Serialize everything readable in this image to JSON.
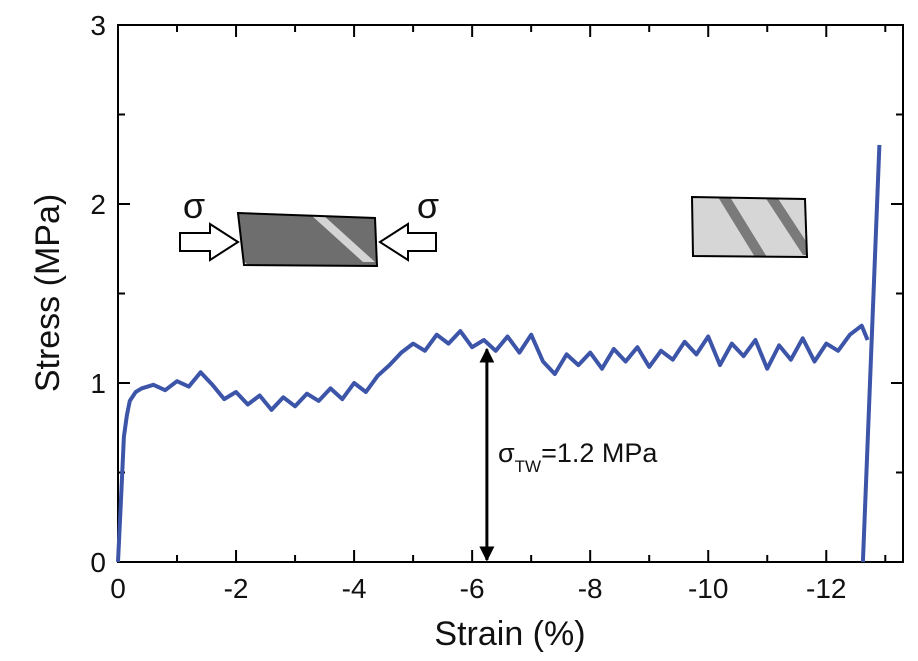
{
  "chart_data": {
    "type": "line",
    "xlabel": "Strain (%)",
    "ylabel": "Stress (MPa)",
    "x": [
      0,
      -0.05,
      -0.1,
      -0.15,
      -0.2,
      -0.3,
      -0.4,
      -0.6,
      -0.8,
      -1.0,
      -1.2,
      -1.4,
      -1.6,
      -1.8,
      -2.0,
      -2.2,
      -2.4,
      -2.6,
      -2.8,
      -3.0,
      -3.2,
      -3.4,
      -3.6,
      -3.8,
      -4.0,
      -4.2,
      -4.4,
      -4.6,
      -4.8,
      -5.0,
      -5.2,
      -5.4,
      -5.6,
      -5.8,
      -6.0,
      -6.2,
      -6.4,
      -6.6,
      -6.8,
      -7.0,
      -7.2,
      -7.4,
      -7.6,
      -7.8,
      -8.0,
      -8.2,
      -8.4,
      -8.6,
      -8.8,
      -9.0,
      -9.2,
      -9.4,
      -9.6,
      -9.8,
      -10.0,
      -10.2,
      -10.4,
      -10.6,
      -10.8,
      -11.0,
      -11.2,
      -11.4,
      -11.6,
      -11.8,
      -12.0,
      -12.2,
      -12.4,
      -12.6,
      -12.7,
      null,
      -12.62,
      -12.9
    ],
    "values": [
      0,
      0.35,
      0.7,
      0.82,
      0.9,
      0.95,
      0.97,
      0.99,
      0.96,
      1.01,
      0.98,
      1.06,
      0.99,
      0.91,
      0.95,
      0.88,
      0.93,
      0.85,
      0.92,
      0.87,
      0.94,
      0.9,
      0.97,
      0.91,
      1.0,
      0.95,
      1.04,
      1.1,
      1.17,
      1.22,
      1.18,
      1.27,
      1.22,
      1.29,
      1.2,
      1.24,
      1.18,
      1.26,
      1.17,
      1.27,
      1.12,
      1.05,
      1.16,
      1.1,
      1.17,
      1.08,
      1.19,
      1.12,
      1.2,
      1.09,
      1.18,
      1.13,
      1.23,
      1.16,
      1.26,
      1.1,
      1.22,
      1.15,
      1.24,
      1.08,
      1.21,
      1.13,
      1.25,
      1.12,
      1.22,
      1.18,
      1.27,
      1.32,
      1.24,
      null,
      0,
      2.33
    ],
    "color": "#3d55a8",
    "xlim": [
      0,
      -13.3
    ],
    "ylim": [
      0,
      3
    ],
    "xticks": [
      0,
      -2,
      -4,
      -6,
      -8,
      -10,
      -12
    ],
    "yticks": [
      0,
      1,
      2,
      3
    ],
    "xticks_minor": [
      -1,
      -3,
      -5,
      -7,
      -9,
      -11,
      -13
    ],
    "yticks_minor": [
      0.5,
      1.5,
      2.5
    ],
    "arrow": {
      "x": -6.25,
      "y_from": 0,
      "y_to": 1.2
    },
    "annotation": {
      "symbol": "σ",
      "subscript": "TW",
      "text": "=1.2 MPa"
    },
    "schematic_labels": [
      "σ",
      "σ"
    ]
  }
}
